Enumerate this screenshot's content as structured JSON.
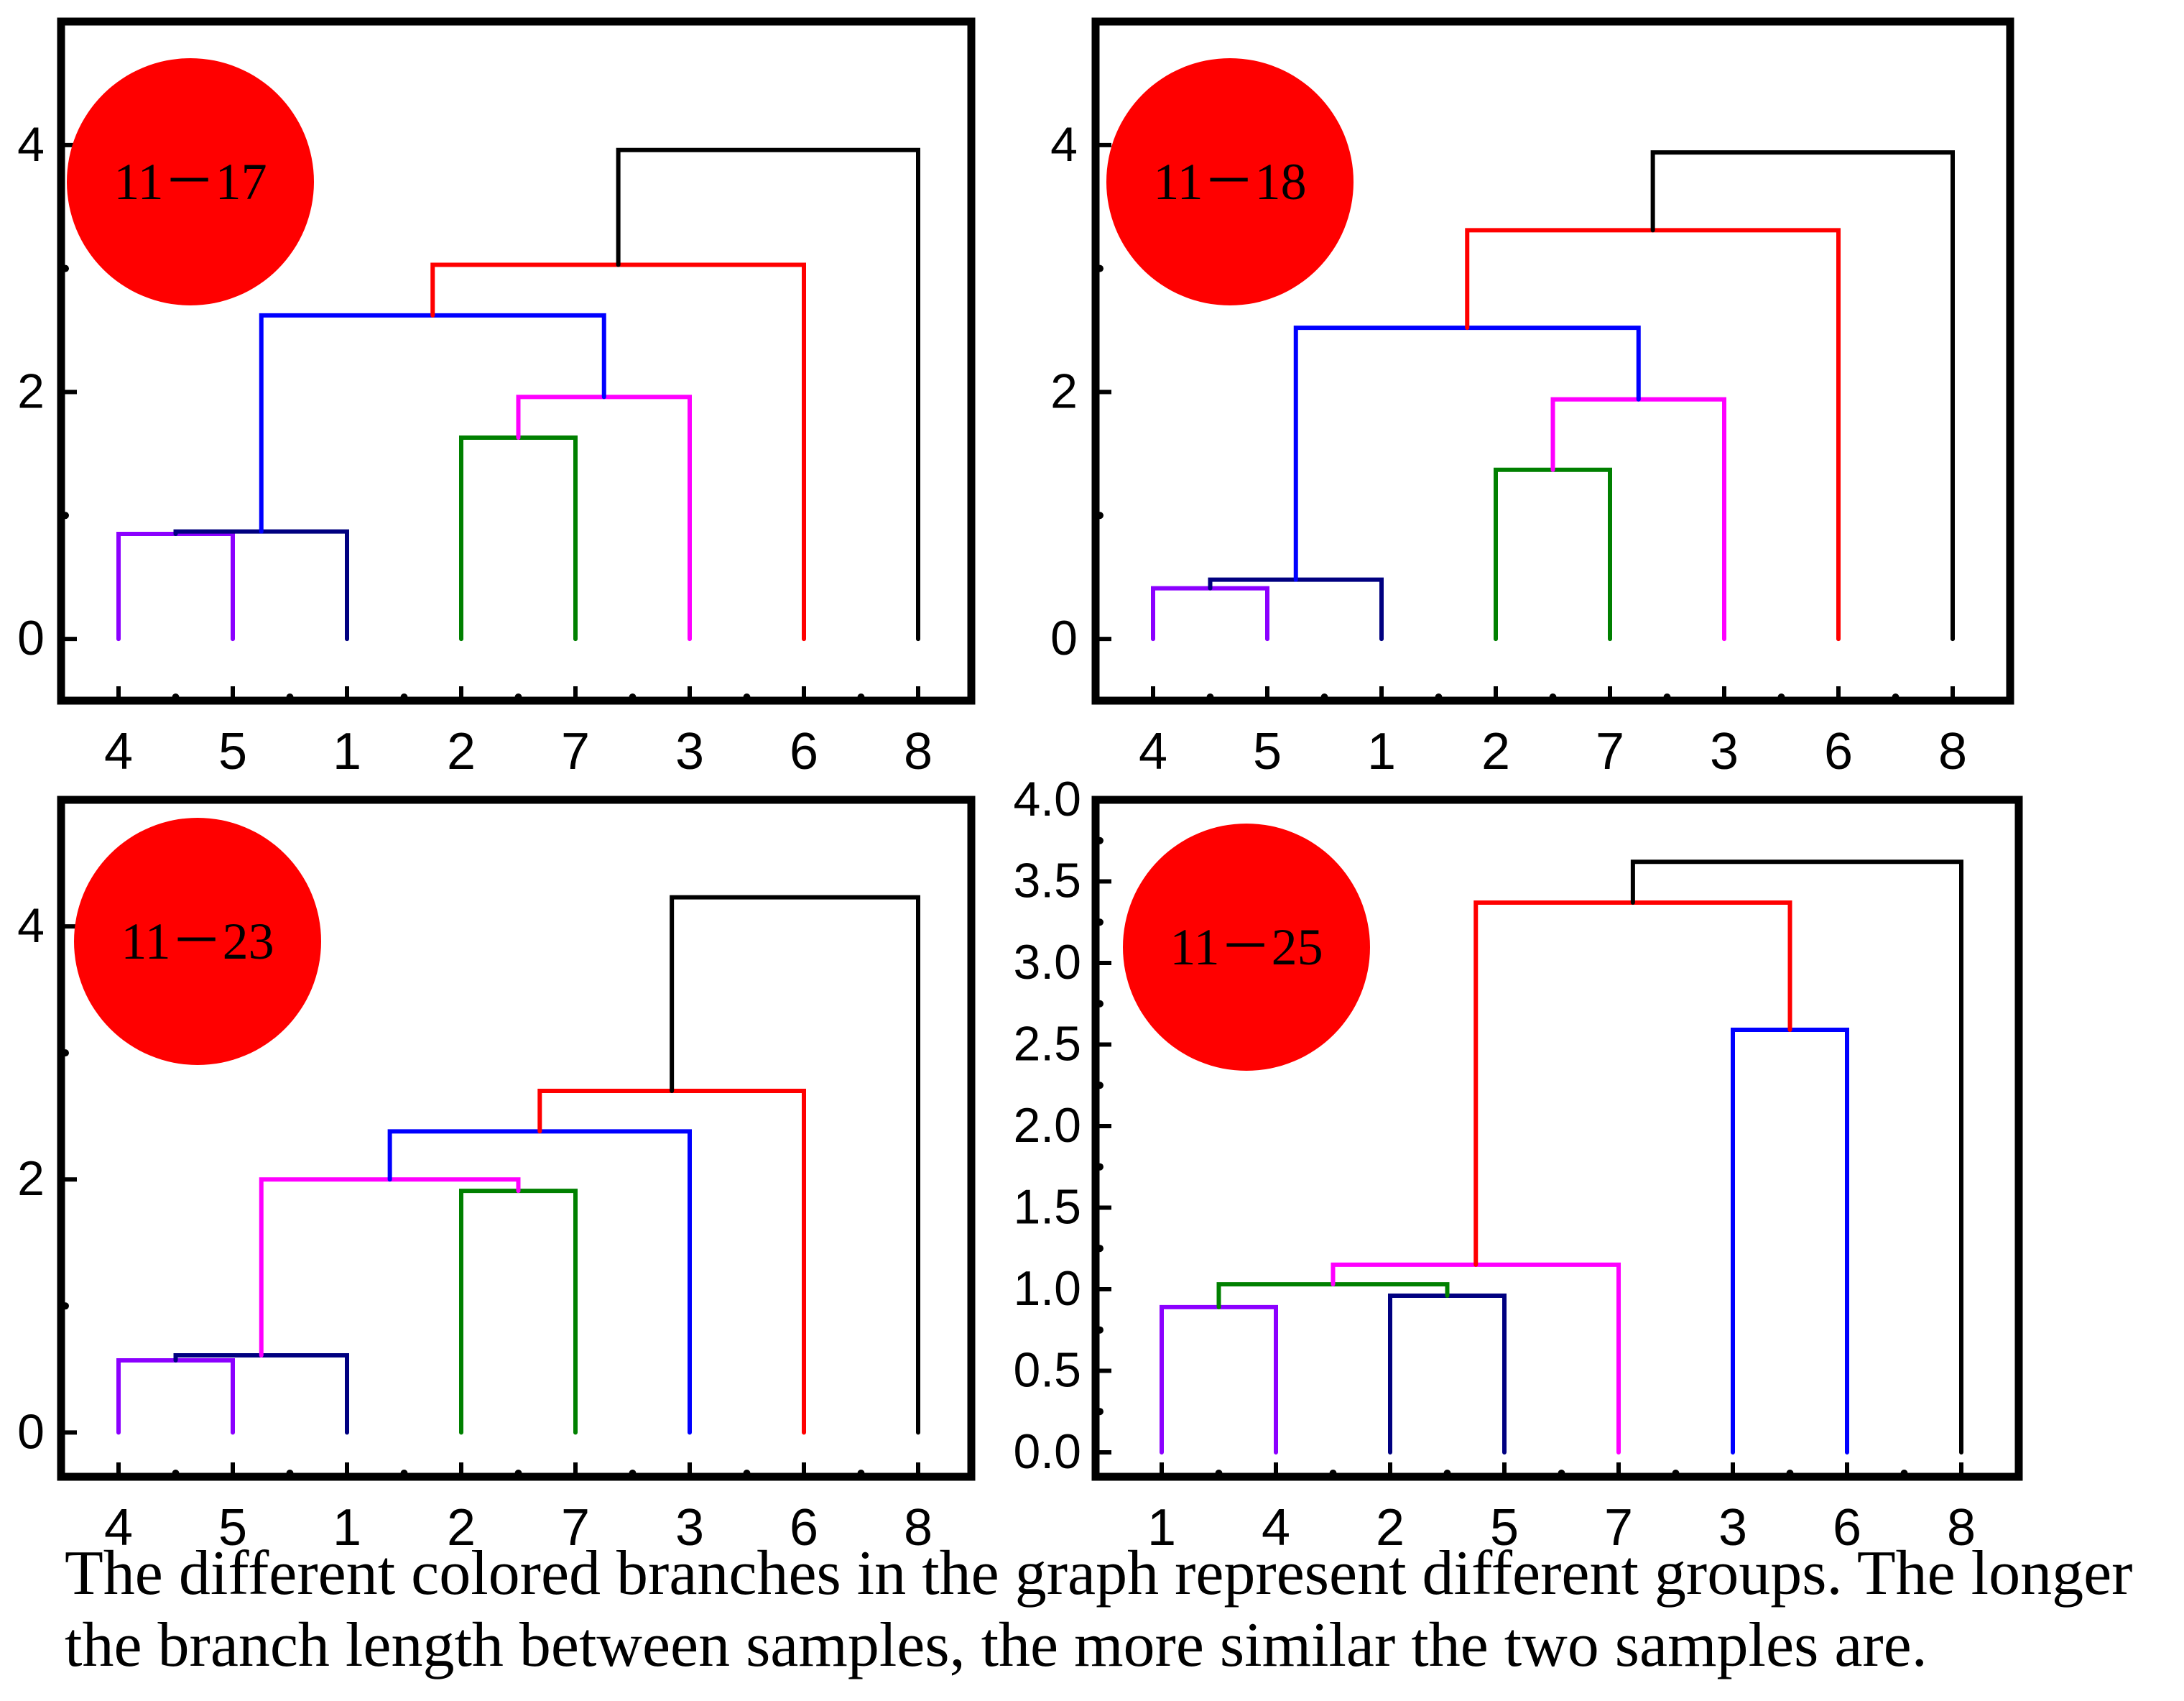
{
  "chart_data": [
    {
      "type": "dendrogram",
      "label": "11－17",
      "leaves": [
        "4",
        "5",
        "1",
        "2",
        "7",
        "3",
        "6",
        "8"
      ],
      "ylim": [
        -0.5,
        5.0
      ],
      "yticks": [
        0,
        2,
        4
      ],
      "ytick_labels": [
        "0",
        "2",
        "4"
      ],
      "links": [
        {
          "a": 0,
          "b": 1,
          "h": 0.85,
          "color": "#8B00FF"
        },
        {
          "a": 0.5,
          "b": 2,
          "h": 0.87,
          "color": "#000080"
        },
        {
          "a": 3,
          "b": 4,
          "h": 1.63,
          "color": "#008000"
        },
        {
          "a": 3.5,
          "b": 5,
          "h": 1.96,
          "color": "#FF00FF"
        },
        {
          "a": 1.25,
          "b": 4.25,
          "h": 2.62,
          "color": "#0000FF"
        },
        {
          "a": 2.75,
          "b": 6,
          "h": 3.03,
          "color": "#FF0000"
        },
        {
          "a": 4.375,
          "b": 7,
          "h": 3.96,
          "color": "#000000"
        }
      ]
    },
    {
      "type": "dendrogram",
      "label": "11－18",
      "leaves": [
        "4",
        "5",
        "1",
        "2",
        "7",
        "3",
        "6",
        "8"
      ],
      "ylim": [
        -0.5,
        5.0
      ],
      "yticks": [
        0,
        2,
        4
      ],
      "ytick_labels": [
        "0",
        "2",
        "4"
      ],
      "links": [
        {
          "a": 0,
          "b": 1,
          "h": 0.41,
          "color": "#8B00FF"
        },
        {
          "a": 0.5,
          "b": 2,
          "h": 0.48,
          "color": "#000080"
        },
        {
          "a": 3,
          "b": 4,
          "h": 1.37,
          "color": "#008000"
        },
        {
          "a": 3.5,
          "b": 5,
          "h": 1.94,
          "color": "#FF00FF"
        },
        {
          "a": 1.25,
          "b": 4.25,
          "h": 2.52,
          "color": "#0000FF"
        },
        {
          "a": 2.75,
          "b": 6,
          "h": 3.31,
          "color": "#FF0000"
        },
        {
          "a": 4.375,
          "b": 7,
          "h": 3.94,
          "color": "#000000"
        }
      ]
    },
    {
      "type": "dendrogram",
      "label": "11－23",
      "leaves": [
        "4",
        "5",
        "1",
        "2",
        "7",
        "3",
        "6",
        "8"
      ],
      "ylim": [
        -0.35,
        5.0
      ],
      "yticks": [
        0,
        2,
        4
      ],
      "ytick_labels": [
        "0",
        "2",
        "4"
      ],
      "links": [
        {
          "a": 0,
          "b": 1,
          "h": 0.57,
          "color": "#8B00FF"
        },
        {
          "a": 0.5,
          "b": 2,
          "h": 0.61,
          "color": "#000080"
        },
        {
          "a": 3,
          "b": 4,
          "h": 1.91,
          "color": "#008000"
        },
        {
          "a": 1.25,
          "b": 3.5,
          "h": 2.0,
          "color": "#FF00FF"
        },
        {
          "a": 2.375,
          "b": 5,
          "h": 2.38,
          "color": "#0000FF"
        },
        {
          "a": 3.6875,
          "b": 6,
          "h": 2.7,
          "color": "#FF0000"
        },
        {
          "a": 4.84375,
          "b": 7,
          "h": 4.23,
          "color": "#000000"
        }
      ]
    },
    {
      "type": "dendrogram",
      "label": "11－25",
      "leaves": [
        "1",
        "4",
        "2",
        "5",
        "7",
        "3",
        "6",
        "8"
      ],
      "ylim": [
        -0.15,
        4.0
      ],
      "yticks": [
        0.0,
        0.5,
        1.0,
        1.5,
        2.0,
        2.5,
        3.0,
        3.5,
        4.0
      ],
      "ytick_labels": [
        "0.0",
        "0.5",
        "1.0",
        "1.5",
        "2.0",
        "2.5",
        "3.0",
        "3.5",
        "4.0"
      ],
      "links": [
        {
          "a": 0,
          "b": 1,
          "h": 0.89,
          "color": "#8B00FF"
        },
        {
          "a": 2,
          "b": 3,
          "h": 0.96,
          "color": "#000080"
        },
        {
          "a": 0.5,
          "b": 2.5,
          "h": 1.03,
          "color": "#008000"
        },
        {
          "a": 1.5,
          "b": 4,
          "h": 1.15,
          "color": "#FF00FF"
        },
        {
          "a": 5,
          "b": 6,
          "h": 2.59,
          "color": "#0000FF"
        },
        {
          "a": 2.75,
          "b": 5.5,
          "h": 3.37,
          "color": "#FF0000"
        },
        {
          "a": 4.125,
          "b": 7,
          "h": 3.62,
          "color": "#000000"
        }
      ]
    }
  ],
  "caption": {
    "line1": "The different colored branches in the graph represent different groups. The longer",
    "line2": "the branch length between samples, the more similar the two samples are."
  },
  "colors": {
    "badge": "#FF0000",
    "frame": "#000000"
  }
}
